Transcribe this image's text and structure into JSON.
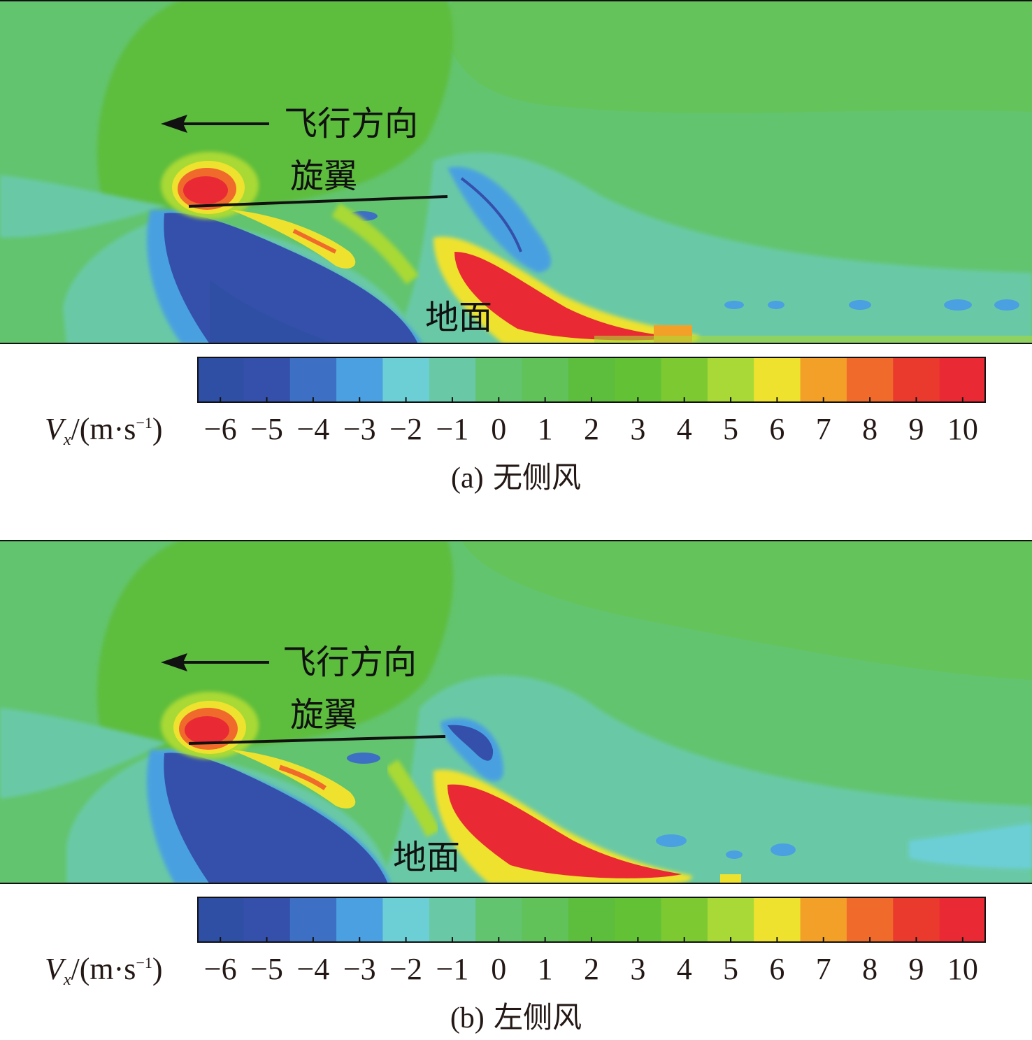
{
  "chart_data": [
    {
      "type": "heatmap",
      "caption": "(a) 无侧风",
      "annotations": [
        "飞行方向",
        "旋翼",
        "地面"
      ],
      "colorbar": {
        "label": "V_x/(m·s⁻¹)",
        "ticks": [
          -6,
          -5,
          -4,
          -3,
          -2,
          -1,
          0,
          1,
          2,
          3,
          4,
          5,
          6,
          7,
          8,
          9,
          10
        ],
        "range": [
          -6.5,
          10.5
        ],
        "colors": [
          "#2e4fa3",
          "#3550aa",
          "#3d6fc4",
          "#4aa0e0",
          "#6ccfd6",
          "#69c9a6",
          "#62c46e",
          "#61c25a",
          "#5dbd3c",
          "#62c134",
          "#7cc932",
          "#a9d936",
          "#eee22e",
          "#f2a028",
          "#f06a2c",
          "#ea3a2e",
          "#e92a34"
        ]
      }
    },
    {
      "type": "heatmap",
      "caption": "(b) 左侧风",
      "annotations": [
        "飞行方向",
        "旋翼",
        "地面"
      ],
      "colorbar": {
        "label": "V_x/(m·s⁻¹)",
        "ticks": [
          -6,
          -5,
          -4,
          -3,
          -2,
          -1,
          0,
          1,
          2,
          3,
          4,
          5,
          6,
          7,
          8,
          9,
          10
        ],
        "range": [
          -6.5,
          10.5
        ],
        "colors": [
          "#2e4fa3",
          "#3550aa",
          "#3d6fc4",
          "#4aa0e0",
          "#6ccfd6",
          "#69c9a6",
          "#62c46e",
          "#61c25a",
          "#5dbd3c",
          "#62c134",
          "#7cc932",
          "#a9d936",
          "#eee22e",
          "#f2a028",
          "#f06a2c",
          "#ea3a2e",
          "#e92a34"
        ]
      }
    }
  ],
  "panels": [
    {
      "flight_direction": "飞行方向",
      "rotor": "旋翼",
      "ground": "地面",
      "cb_var": "V",
      "cb_sub": "x",
      "cb_unit_open": "/(m·s",
      "cb_sup": "−1",
      "cb_unit_close": ")",
      "tick_labels": [
        "−6",
        "−5",
        "−4",
        "−3",
        "−2",
        "−1",
        "0",
        "1",
        "2",
        "3",
        "4",
        "5",
        "6",
        "7",
        "8",
        "9",
        "10"
      ],
      "caption_letter": "(a)",
      "caption_text": "无侧风"
    },
    {
      "flight_direction": "飞行方向",
      "rotor": "旋翼",
      "ground": "地面",
      "cb_var": "V",
      "cb_sub": "x",
      "cb_unit_open": "/(m·s",
      "cb_sup": "−1",
      "cb_unit_close": ")",
      "tick_labels": [
        "−6",
        "−5",
        "−4",
        "−3",
        "−2",
        "−1",
        "0",
        "1",
        "2",
        "3",
        "4",
        "5",
        "6",
        "7",
        "8",
        "9",
        "10"
      ],
      "caption_letter": "(b)",
      "caption_text": "左侧风"
    }
  ]
}
